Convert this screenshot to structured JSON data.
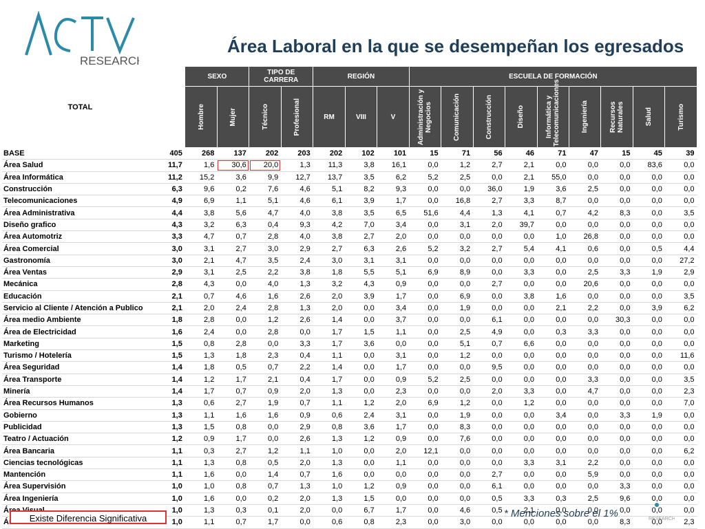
{
  "logo": {
    "brand": "ACTIVA",
    "sub": "RESEARCH"
  },
  "title": "Área Laboral en la que se desempeñan los egresados",
  "header": {
    "total": "TOTAL",
    "groups": [
      {
        "label": "SEXO",
        "span": 2
      },
      {
        "label": "TIPO DE CARRERA",
        "span": 2
      },
      {
        "label": "REGIÓN",
        "span": 3
      },
      {
        "label": "ESCUELA DE FORMACIÓN",
        "span": 9
      }
    ],
    "columns": [
      {
        "label": "Hombre",
        "vertical": true
      },
      {
        "label": "Mujer",
        "vertical": true
      },
      {
        "label": "Técnico",
        "vertical": true
      },
      {
        "label": "Profesional",
        "vertical": true
      },
      {
        "label": "RM",
        "vertical": false
      },
      {
        "label": "VIII",
        "vertical": false
      },
      {
        "label": "V",
        "vertical": false
      },
      {
        "label": "Administración y Negocios",
        "vertical": true
      },
      {
        "label": "Comunicación",
        "vertical": true
      },
      {
        "label": "Construcción",
        "vertical": true
      },
      {
        "label": "Diseño",
        "vertical": true
      },
      {
        "label": "Informática y Telecomunicaciones",
        "vertical": true
      },
      {
        "label": "Ingeniería",
        "vertical": true
      },
      {
        "label": "Recursos Naturales",
        "vertical": true
      },
      {
        "label": "Salud",
        "vertical": true
      },
      {
        "label": "Turismo",
        "vertical": true
      }
    ]
  },
  "rows": [
    {
      "label": "BASE",
      "total": "405",
      "values": [
        "268",
        "137",
        "202",
        "203",
        "202",
        "102",
        "101",
        "15",
        "71",
        "56",
        "46",
        "71",
        "47",
        "15",
        "45",
        "39"
      ]
    },
    {
      "label": "Área Salud",
      "total": "11,7",
      "values": [
        "1,6",
        "30,6",
        "20,0",
        "1,3",
        "11,3",
        "3,8",
        "16,1",
        "0,0",
        "1,2",
        "2,7",
        "2,1",
        "0,0",
        "0,0",
        "0,0",
        "83,6",
        "0,0"
      ],
      "sig": [
        1,
        2
      ]
    },
    {
      "label": "Área Informática",
      "total": "11,2",
      "values": [
        "15,2",
        "3,6",
        "9,9",
        "12,7",
        "13,7",
        "3,5",
        "6,2",
        "5,2",
        "2,5",
        "0,0",
        "2,1",
        "55,0",
        "0,0",
        "0,0",
        "0,0",
        "0,0"
      ]
    },
    {
      "label": "Construcción",
      "total": "6,3",
      "values": [
        "9,6",
        "0,2",
        "7,6",
        "4,6",
        "5,1",
        "8,2",
        "9,3",
        "0,0",
        "0,0",
        "36,0",
        "1,9",
        "3,6",
        "2,5",
        "0,0",
        "0,0",
        "0,0"
      ]
    },
    {
      "label": "Telecomunicaciones",
      "total": "4,9",
      "values": [
        "6,9",
        "1,1",
        "5,1",
        "4,6",
        "6,1",
        "3,9",
        "1,7",
        "0,0",
        "16,8",
        "2,7",
        "3,3",
        "8,7",
        "0,0",
        "0,0",
        "0,0",
        "0,0"
      ]
    },
    {
      "label": "Área Administrativa",
      "total": "4,4",
      "values": [
        "3,8",
        "5,6",
        "4,7",
        "4,0",
        "3,8",
        "3,5",
        "6,5",
        "51,6",
        "4,4",
        "1,3",
        "4,1",
        "0,7",
        "4,2",
        "8,3",
        "0,0",
        "3,5"
      ]
    },
    {
      "label": "Diseño grafico",
      "total": "4,3",
      "values": [
        "3,2",
        "6,3",
        "0,4",
        "9,3",
        "4,2",
        "7,0",
        "3,4",
        "0,0",
        "3,1",
        "2,0",
        "39,7",
        "0,0",
        "0,0",
        "0,0",
        "0,0",
        "0,0"
      ]
    },
    {
      "label": "Área Automotriz",
      "total": "3,3",
      "values": [
        "4,7",
        "0,7",
        "2,8",
        "4,0",
        "3,8",
        "2,7",
        "2,0",
        "0,0",
        "0,0",
        "0,0",
        "0,0",
        "1,0",
        "26,8",
        "0,0",
        "0,0",
        "0,0"
      ]
    },
    {
      "label": "Área Comercial",
      "total": "3,0",
      "values": [
        "3,1",
        "2,7",
        "3,0",
        "2,9",
        "2,7",
        "6,3",
        "2,6",
        "5,2",
        "3,2",
        "2,7",
        "5,4",
        "4,1",
        "0,6",
        "0,0",
        "0,5",
        "4,4"
      ]
    },
    {
      "label": "Gastronomía",
      "total": "3,0",
      "values": [
        "2,1",
        "4,7",
        "3,5",
        "2,4",
        "3,0",
        "3,1",
        "3,1",
        "0,0",
        "0,0",
        "0,0",
        "0,0",
        "0,0",
        "0,0",
        "0,0",
        "0,0",
        "27,2"
      ]
    },
    {
      "label": "Área Ventas",
      "total": "2,9",
      "values": [
        "3,1",
        "2,5",
        "2,2",
        "3,8",
        "1,8",
        "5,5",
        "5,1",
        "6,9",
        "8,9",
        "0,0",
        "3,3",
        "0,0",
        "2,5",
        "3,3",
        "1,9",
        "2,9"
      ]
    },
    {
      "label": "Mecánica",
      "total": "2,8",
      "values": [
        "4,3",
        "0,0",
        "4,0",
        "1,3",
        "3,2",
        "4,3",
        "0,9",
        "0,0",
        "0,0",
        "2,7",
        "0,0",
        "0,0",
        "20,6",
        "0,0",
        "0,0",
        "0,0"
      ]
    },
    {
      "label": "Educación",
      "total": "2,1",
      "values": [
        "0,7",
        "4,6",
        "1,6",
        "2,6",
        "2,0",
        "3,9",
        "1,7",
        "0,0",
        "6,9",
        "0,0",
        "3,8",
        "1,6",
        "0,0",
        "0,0",
        "0,0",
        "3,5"
      ]
    },
    {
      "label": "Servicio al Cliente / Atención a Publico",
      "total": "2,1",
      "values": [
        "2,0",
        "2,4",
        "2,8",
        "1,3",
        "2,0",
        "0,0",
        "3,4",
        "0,0",
        "1,9",
        "0,0",
        "0,0",
        "2,1",
        "2,2",
        "0,0",
        "3,9",
        "6,2"
      ]
    },
    {
      "label": "Área medio Ambiente",
      "total": "1,8",
      "values": [
        "2,8",
        "0,0",
        "1,2",
        "2,6",
        "1,4",
        "0,0",
        "3,7",
        "0,0",
        "0,0",
        "6,1",
        "0,0",
        "0,0",
        "0,0",
        "30,3",
        "0,0",
        "0,0"
      ]
    },
    {
      "label": "Área de Electricidad",
      "total": "1,6",
      "values": [
        "2,4",
        "0,0",
        "2,8",
        "0,0",
        "1,7",
        "1,5",
        "1,1",
        "0,0",
        "2,5",
        "4,9",
        "0,0",
        "0,3",
        "3,3",
        "0,0",
        "0,0",
        "0,0"
      ]
    },
    {
      "label": "Marketing",
      "total": "1,5",
      "values": [
        "0,8",
        "2,8",
        "0,0",
        "3,3",
        "1,7",
        "3,6",
        "0,0",
        "0,0",
        "5,1",
        "0,7",
        "6,6",
        "0,0",
        "0,0",
        "0,0",
        "0,0",
        "0,0"
      ]
    },
    {
      "label": "Turismo / Hotelería",
      "total": "1,5",
      "values": [
        "1,3",
        "1,8",
        "2,3",
        "0,4",
        "1,1",
        "0,0",
        "3,1",
        "0,0",
        "1,2",
        "0,0",
        "0,0",
        "0,0",
        "0,0",
        "0,0",
        "0,0",
        "11,6"
      ]
    },
    {
      "label": "Área Seguridad",
      "total": "1,4",
      "values": [
        "1,8",
        "0,5",
        "0,7",
        "2,2",
        "1,4",
        "0,0",
        "1,7",
        "0,0",
        "0,0",
        "9,5",
        "0,0",
        "0,0",
        "0,0",
        "0,0",
        "0,0",
        "0,0"
      ]
    },
    {
      "label": "Área Transporte",
      "total": "1,4",
      "values": [
        "1,2",
        "1,7",
        "2,1",
        "0,4",
        "1,7",
        "0,0",
        "0,9",
        "5,2",
        "2,5",
        "0,0",
        "0,0",
        "0,0",
        "3,3",
        "0,0",
        "0,0",
        "3,5"
      ]
    },
    {
      "label": "Minería",
      "total": "1,4",
      "values": [
        "1,7",
        "0,7",
        "0,9",
        "2,0",
        "1,3",
        "0,0",
        "2,3",
        "0,0",
        "0,0",
        "2,0",
        "3,3",
        "0,0",
        "4,7",
        "0,0",
        "0,0",
        "2,3"
      ]
    },
    {
      "label": "Área Recursos Humanos",
      "total": "1,3",
      "values": [
        "0,6",
        "2,7",
        "1,9",
        "0,7",
        "1,1",
        "1,2",
        "2,0",
        "6,9",
        "1,2",
        "0,0",
        "1,2",
        "0,0",
        "0,0",
        "0,0",
        "0,0",
        "7,0"
      ]
    },
    {
      "label": "Gobierno",
      "total": "1,3",
      "values": [
        "1,1",
        "1,6",
        "1,6",
        "0,9",
        "0,6",
        "2,4",
        "3,1",
        "0,0",
        "1,9",
        "0,0",
        "0,0",
        "3,4",
        "0,0",
        "3,3",
        "1,9",
        "0,0"
      ]
    },
    {
      "label": "Publicidad",
      "total": "1,3",
      "values": [
        "1,5",
        "0,8",
        "0,0",
        "2,9",
        "0,8",
        "3,6",
        "1,7",
        "0,0",
        "8,3",
        "0,0",
        "0,0",
        "0,0",
        "0,0",
        "0,0",
        "0,0",
        "0,0"
      ]
    },
    {
      "label": "Teatro / Actuación",
      "total": "1,2",
      "values": [
        "0,9",
        "1,7",
        "0,0",
        "2,6",
        "1,3",
        "1,2",
        "0,9",
        "0,0",
        "7,6",
        "0,0",
        "0,0",
        "0,0",
        "0,0",
        "0,0",
        "0,0",
        "0,0"
      ]
    },
    {
      "label": "Área Bancaria",
      "total": "1,1",
      "values": [
        "0,3",
        "2,7",
        "1,2",
        "1,1",
        "1,0",
        "0,0",
        "2,0",
        "12,1",
        "0,0",
        "0,0",
        "0,0",
        "0,0",
        "0,0",
        "0,0",
        "0,0",
        "6,2"
      ]
    },
    {
      "label": "Ciencias tecnológicas",
      "total": "1,1",
      "values": [
        "1,3",
        "0,8",
        "0,5",
        "2,0",
        "1,3",
        "0,0",
        "1,1",
        "0,0",
        "0,0",
        "0,0",
        "3,3",
        "3,1",
        "2,2",
        "0,0",
        "0,0",
        "0,0"
      ]
    },
    {
      "label": "Mantención",
      "total": "1,1",
      "values": [
        "1,6",
        "0,0",
        "1,4",
        "0,7",
        "1,6",
        "0,0",
        "0,0",
        "0,0",
        "0,0",
        "2,7",
        "0,0",
        "0,0",
        "5,9",
        "0,0",
        "0,0",
        "0,0"
      ]
    },
    {
      "label": "Área Supervisión",
      "total": "1,0",
      "values": [
        "1,0",
        "0,8",
        "0,7",
        "1,3",
        "1,0",
        "1,2",
        "0,9",
        "0,0",
        "0,0",
        "6,1",
        "0,0",
        "0,0",
        "0,0",
        "3,3",
        "0,0",
        "0,0"
      ]
    },
    {
      "label": "Área Ingeniería",
      "total": "1,0",
      "values": [
        "1,6",
        "0,0",
        "0,2",
        "2,0",
        "1,3",
        "1,5",
        "0,0",
        "0,0",
        "0,0",
        "0,5",
        "3,3",
        "0,3",
        "2,5",
        "9,6",
        "0,0",
        "0,0"
      ]
    },
    {
      "label": "Área Visual",
      "total": "1,0",
      "values": [
        "1,3",
        "0,3",
        "0,1",
        "2,0",
        "0,0",
        "6,7",
        "1,7",
        "0,0",
        "4,6",
        "0,5",
        "2,1",
        "0,0",
        "0,0",
        "0,0",
        "0,0",
        "0,0"
      ]
    },
    {
      "label": "Área Servicio",
      "total": "1,0",
      "values": [
        "1,1",
        "0,7",
        "1,7",
        "0,0",
        "0,6",
        "0,8",
        "2,3",
        "0,0",
        "3,0",
        "0,0",
        "0,0",
        "0,0",
        "0,0",
        "8,3",
        "0,0",
        "2,3"
      ]
    }
  ],
  "legend": "Existe Diferencia Significativa",
  "note": "* Menciones sobre el 1%",
  "colors": {
    "header_bg": "#4a4a4a",
    "title": "#1f3e5a",
    "highlight": "#e03030",
    "logo": "#2a8aa8"
  }
}
